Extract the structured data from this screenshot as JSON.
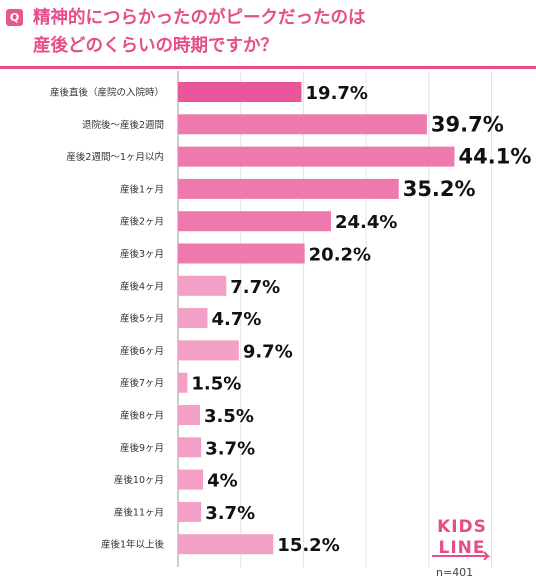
{
  "question_badge": "Q",
  "title_line1": "精神的につらかったのがピークだったのは",
  "title_line2": "産後どのくらいの時期ですか？",
  "sample_size": "n=401",
  "logo": {
    "line1": "KIDS",
    "line2": "LINE"
  },
  "colors": {
    "accent": "#e64d8a",
    "bar_highlight": "#e8579b",
    "bar_primary": "#ee79ae",
    "bar_light": "#f2a0c6"
  },
  "chart_data": {
    "type": "bar",
    "orientation": "horizontal",
    "categories": [
      "産後直後（産院の入院時）",
      "退院後〜産後2週間",
      "産後2週間〜1ヶ月以内",
      "産後1ヶ月",
      "産後2ヶ月",
      "産後3ヶ月",
      "産後4ヶ月",
      "産後5ヶ月",
      "産後6ヶ月",
      "産後7ヶ月",
      "産後8ヶ月",
      "産後9ヶ月",
      "産後10ヶ月",
      "産後11ヶ月",
      "産後1年以上後"
    ],
    "values": [
      19.7,
      39.7,
      44.1,
      35.2,
      24.4,
      20.2,
      7.7,
      4.7,
      9.7,
      1.5,
      3.5,
      3.7,
      4,
      3.7,
      15.2
    ],
    "labels": [
      "19.7%",
      "39.7%",
      "44.1%",
      "35.2%",
      "24.4%",
      "20.2%",
      "7.7%",
      "4.7%",
      "9.7%",
      "1.5%",
      "3.5%",
      "3.7%",
      "4%",
      "3.7%",
      "15.2%"
    ],
    "xlim": [
      0,
      50
    ],
    "grid": true
  }
}
